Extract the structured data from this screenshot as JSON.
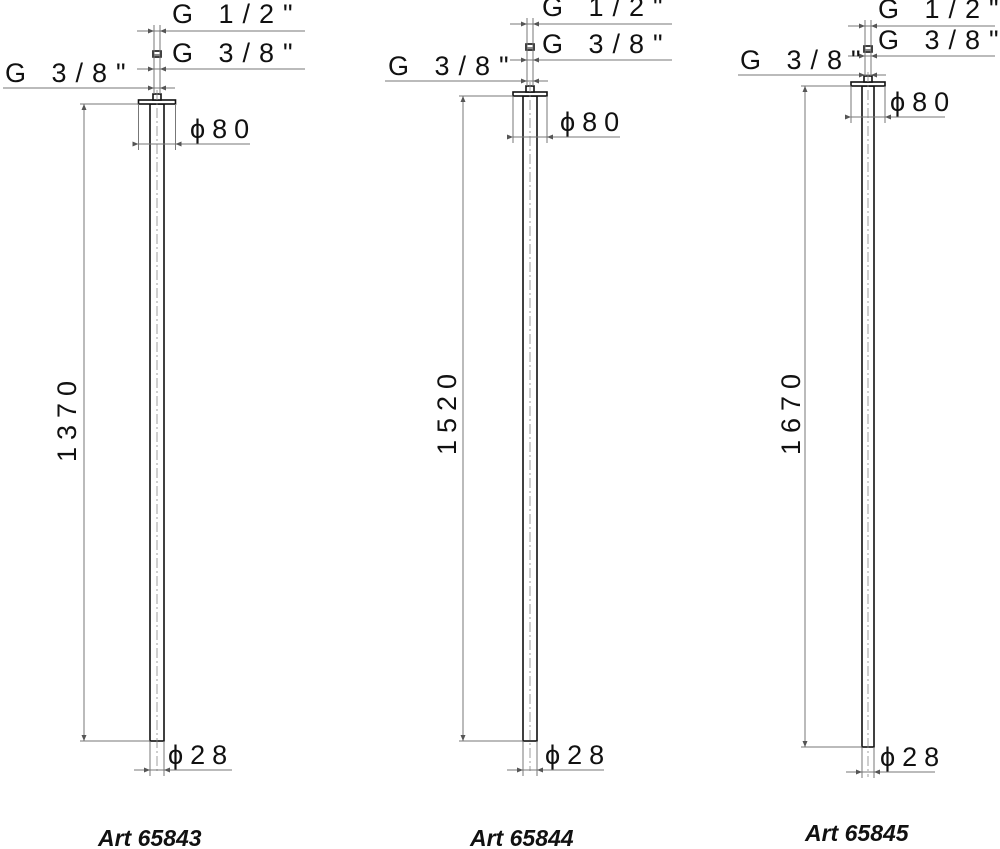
{
  "drawings": [
    {
      "article": "Art 65843",
      "length": "1370",
      "inlet_top": "G 1/2\"",
      "inlet_mid": "G 3/8\"",
      "outlet": "G 3/8\"",
      "flange_diameter": "ϕ80",
      "pipe_diameter": "ϕ28"
    },
    {
      "article": "Art 65844",
      "length": "1520",
      "inlet_top": "G 1/2\"",
      "inlet_mid": "G 3/8\"",
      "outlet": "G 3/8\"",
      "flange_diameter": "ϕ80",
      "pipe_diameter": "ϕ28"
    },
    {
      "article": "Art 65845",
      "length": "1670",
      "inlet_top": "G 1/2\"",
      "inlet_mid": "G 3/8\"",
      "outlet": "G 3/8\"",
      "flange_diameter": "ϕ80",
      "pipe_diameter": "ϕ28"
    }
  ]
}
